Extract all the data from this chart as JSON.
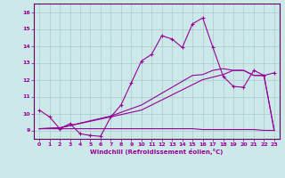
{
  "xlabel": "Windchill (Refroidissement éolien,°C)",
  "background_color": "#cce8e8",
  "grid_color": "#aacccc",
  "line_color": "#990099",
  "spine_color": "#660066",
  "xlim": [
    -0.5,
    23.5
  ],
  "ylim": [
    8.5,
    16.5
  ],
  "yticks": [
    9,
    10,
    11,
    12,
    13,
    14,
    15,
    16
  ],
  "xticks": [
    0,
    1,
    2,
    3,
    4,
    5,
    6,
    7,
    8,
    9,
    10,
    11,
    12,
    13,
    14,
    15,
    16,
    17,
    18,
    19,
    20,
    21,
    22,
    23
  ],
  "series1_x": [
    0,
    1,
    2,
    3,
    4,
    5,
    6,
    7,
    8,
    9,
    10,
    11,
    12,
    13,
    14,
    15,
    16,
    17,
    18,
    19,
    20,
    21,
    22,
    23
  ],
  "series1_y": [
    10.2,
    9.8,
    9.1,
    9.4,
    8.8,
    8.7,
    8.65,
    9.8,
    10.5,
    11.8,
    13.1,
    13.5,
    14.6,
    14.4,
    13.9,
    15.3,
    15.65,
    13.9,
    12.2,
    11.6,
    11.55,
    12.55,
    12.25,
    12.4
  ],
  "series2_x": [
    0,
    1,
    2,
    3,
    4,
    5,
    6,
    7,
    8,
    9,
    10,
    11,
    12,
    13,
    14,
    15,
    16,
    17,
    18,
    19,
    20,
    21,
    22,
    23
  ],
  "series2_y": [
    9.1,
    9.1,
    9.1,
    9.1,
    9.1,
    9.1,
    9.1,
    9.1,
    9.1,
    9.1,
    9.1,
    9.1,
    9.1,
    9.1,
    9.1,
    9.1,
    9.05,
    9.05,
    9.05,
    9.05,
    9.05,
    9.05,
    9.0,
    9.0
  ],
  "series3_x": [
    0,
    2,
    7,
    10,
    11,
    12,
    13,
    14,
    15,
    16,
    17,
    18,
    19,
    20,
    21,
    22,
    23
  ],
  "series3_y": [
    9.1,
    9.15,
    9.8,
    10.2,
    10.5,
    10.8,
    11.1,
    11.4,
    11.7,
    12.0,
    12.15,
    12.3,
    12.55,
    12.55,
    12.25,
    12.25,
    9.0
  ],
  "series4_x": [
    0,
    2,
    7,
    10,
    11,
    12,
    13,
    14,
    15,
    16,
    17,
    18,
    19,
    20,
    21,
    22,
    23
  ],
  "series4_y": [
    9.1,
    9.15,
    9.85,
    10.5,
    10.85,
    11.2,
    11.55,
    11.9,
    12.25,
    12.3,
    12.55,
    12.65,
    12.55,
    12.55,
    12.25,
    12.25,
    9.0
  ]
}
